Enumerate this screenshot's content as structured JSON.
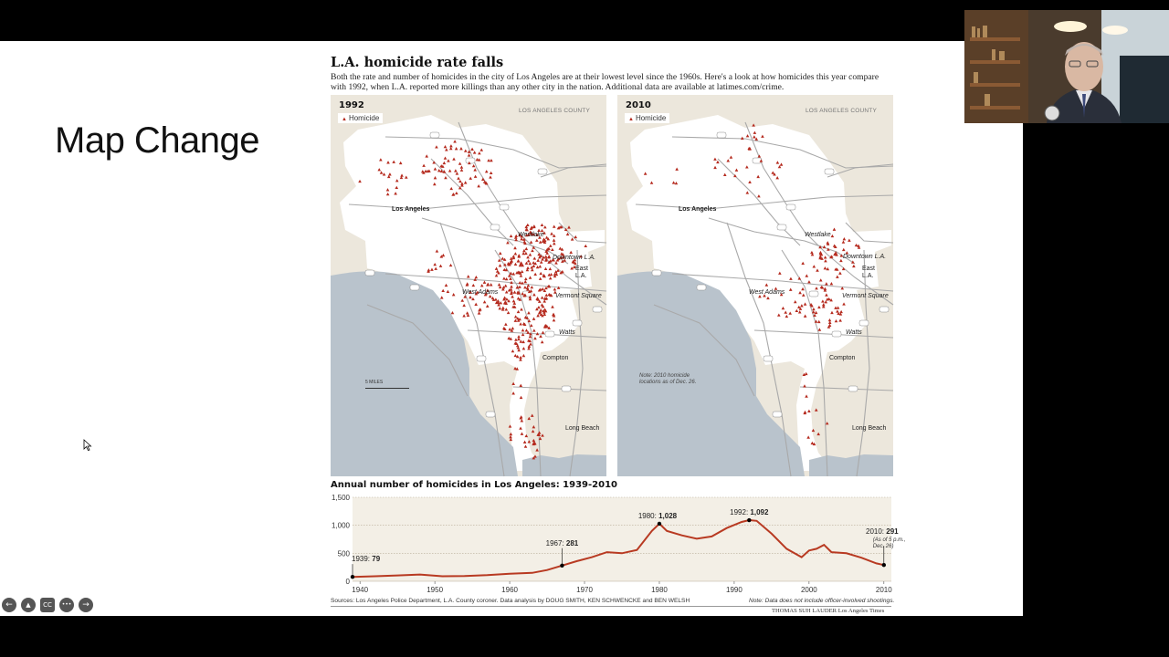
{
  "slide": {
    "title": "Map Change"
  },
  "graphic": {
    "title": "L.A. homicide rate falls",
    "subtitle": "Both the rate and number of homicides in the city of Los Angeles are at their lowest level since the 1960s. Here's a look at how homicides this year compare with 1992, when L.A. reported more killings than any other city in the nation. Additional data are available at latimes.com/crime.",
    "county_label": "LOS ANGELES COUNTY",
    "legend_label": "Homicide",
    "maps": [
      {
        "year": "1992"
      },
      {
        "year": "2010",
        "note": "Note: 2010 homicide locations as of Dec. 26."
      }
    ],
    "scale_label": "5 MILES",
    "places": {
      "los_angeles": "Los Angeles",
      "westlake": "Westlake",
      "downtown": "Downtown L.A.",
      "east_la": "East L.A.",
      "west_adams": "West Adams",
      "vermont_square": "Vermont Square",
      "watts": "Watts",
      "compton": "Compton",
      "long_beach": "Long Beach"
    },
    "highways": [
      "118",
      "5",
      "210",
      "134",
      "101",
      "110",
      "405",
      "10",
      "710",
      "105",
      "91",
      "1",
      "5"
    ],
    "colors": {
      "homicide": "#b52a1e",
      "water": "#b9c3cc",
      "city": "#ffffff",
      "land": "#ece7dc",
      "line": "#b83a22"
    }
  },
  "chart_data": {
    "type": "line",
    "title": "Annual number of homicides in Los Angeles: 1939-2010",
    "x_ticks": [
      "1940",
      "1950",
      "1960",
      "1970",
      "1980",
      "1990",
      "2000",
      "2010"
    ],
    "y_ticks": [
      "0",
      "500",
      "1,000",
      "1,500"
    ],
    "xlim": [
      1939,
      2011
    ],
    "ylim": [
      0,
      1500
    ],
    "x": [
      1939,
      1942,
      1945,
      1948,
      1951,
      1954,
      1957,
      1960,
      1963,
      1965,
      1967,
      1969,
      1971,
      1973,
      1975,
      1977,
      1979,
      1980,
      1981,
      1983,
      1985,
      1987,
      1989,
      1991,
      1992,
      1993,
      1995,
      1997,
      1999,
      2000,
      2001,
      2002,
      2003,
      2005,
      2007,
      2009,
      2010
    ],
    "values": [
      79,
      90,
      105,
      120,
      90,
      95,
      110,
      135,
      150,
      200,
      281,
      360,
      430,
      520,
      500,
      560,
      900,
      1028,
      900,
      820,
      760,
      800,
      950,
      1060,
      1092,
      1080,
      850,
      580,
      430,
      550,
      580,
      650,
      520,
      500,
      420,
      320,
      291
    ],
    "annotations": [
      {
        "year_label": "1939",
        "value_label": "79",
        "x": 1939,
        "y": 79
      },
      {
        "year_label": "1967",
        "value_label": "281",
        "x": 1967,
        "y": 281
      },
      {
        "year_label": "1980",
        "value_label": "1,028",
        "x": 1980,
        "y": 1028
      },
      {
        "year_label": "1992",
        "value_label": "1,092",
        "x": 1992,
        "y": 1092
      },
      {
        "year_label": "2010",
        "value_label": "291",
        "x": 2010,
        "y": 291,
        "extra": "(As of 5 p.m., Dec. 26)"
      }
    ]
  },
  "footer": {
    "sources": "Sources: Los Angeles Police Department, L.A. County coroner. Data analysis by DOUG SMITH, KEN SCHWENCKE and BEN WELSH",
    "note": "Note: Data does not include officer-involved shootings.",
    "credit": "THOMAS SUH LAUDER Los Angeles Times"
  },
  "toolbar": {
    "buttons": [
      {
        "icon": "back-arrow-icon",
        "glyph": "←"
      },
      {
        "icon": "pointer-icon",
        "glyph": "▲"
      },
      {
        "icon": "captions-icon",
        "glyph": "CC"
      },
      {
        "icon": "more-options-icon",
        "glyph": "•••"
      },
      {
        "icon": "forward-arrow-icon",
        "glyph": "→"
      }
    ]
  }
}
